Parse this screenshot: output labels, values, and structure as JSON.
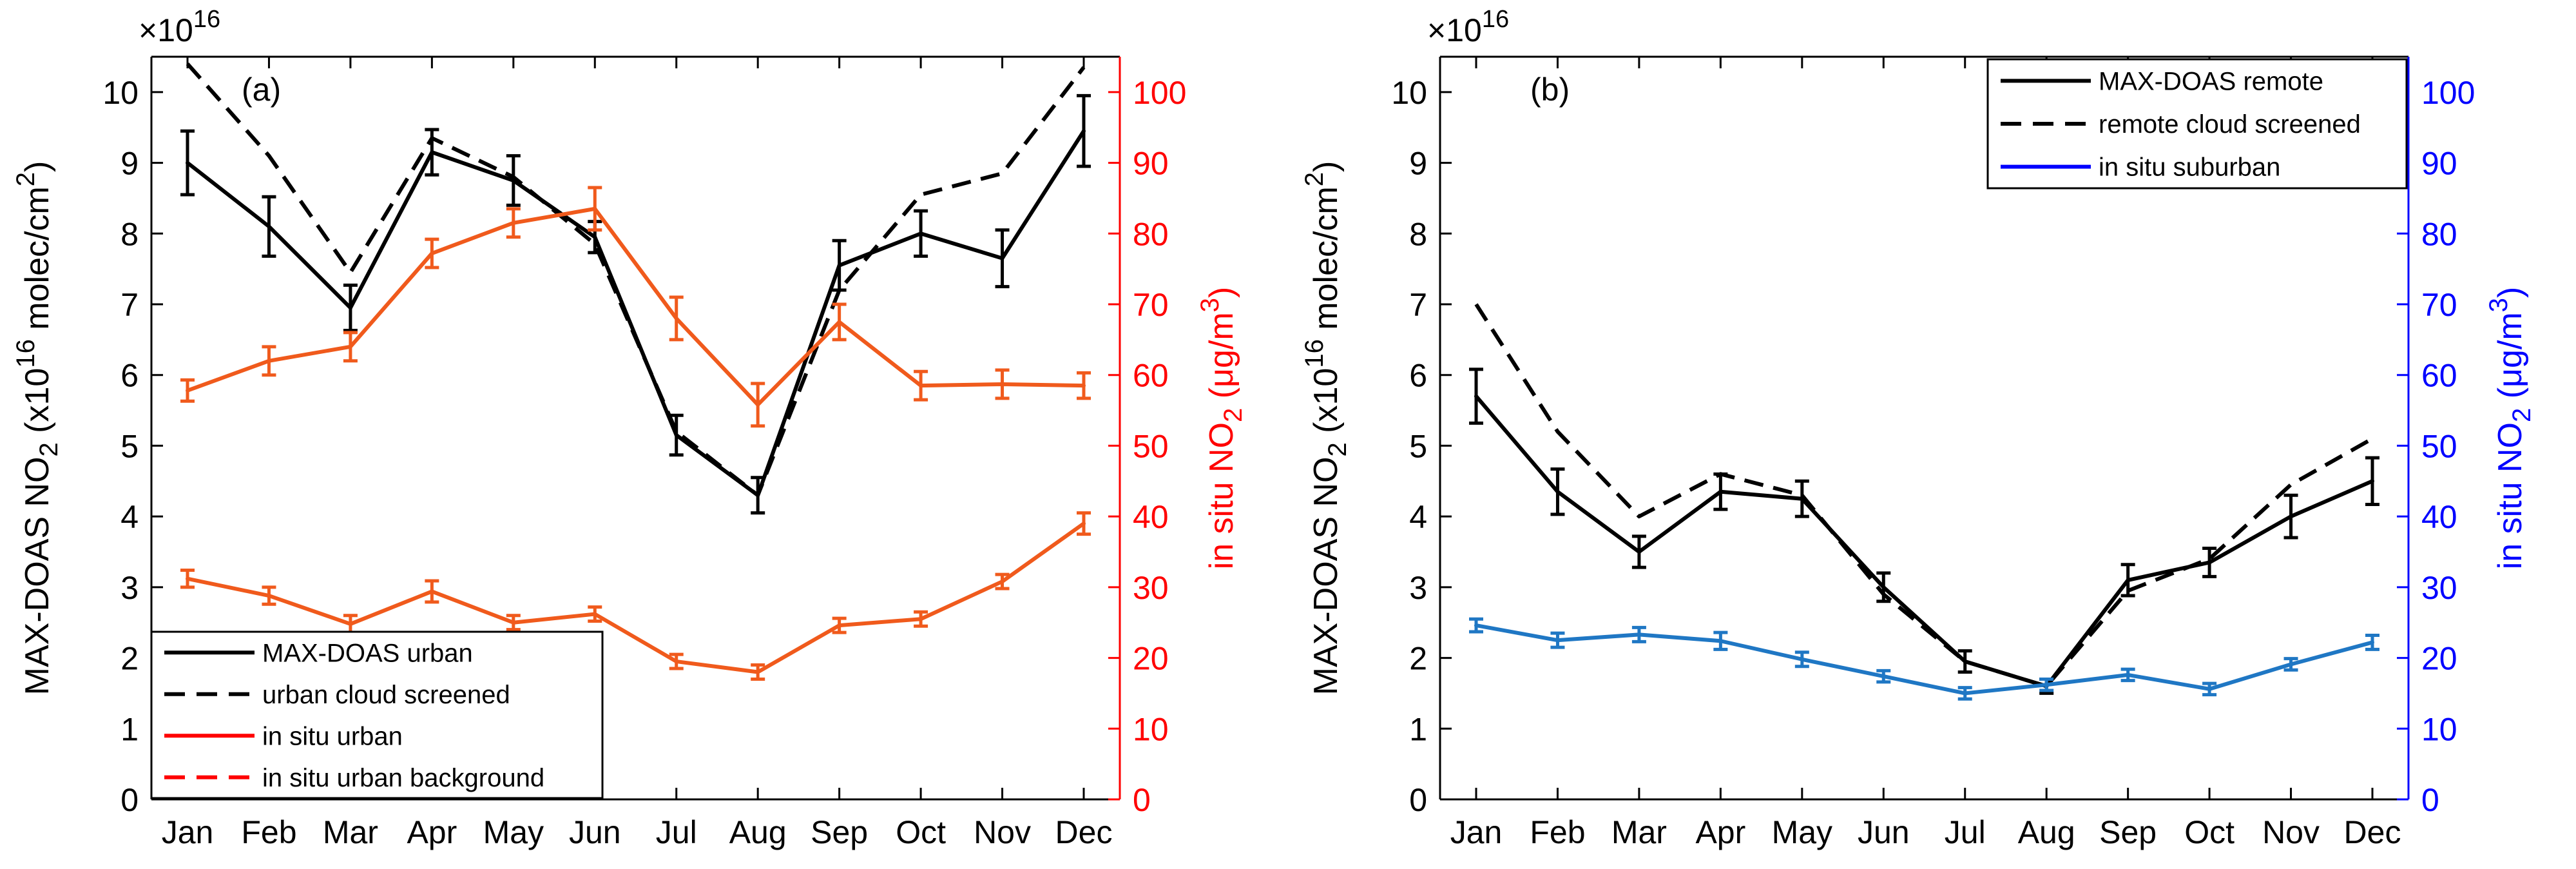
{
  "chart_data": [
    {
      "panel_label": "(a)",
      "type": "line",
      "x": [
        "Jan",
        "Feb",
        "Mar",
        "Apr",
        "May",
        "Jun",
        "Jul",
        "Aug",
        "Sep",
        "Oct",
        "Nov",
        "Dec"
      ],
      "multiplier_label": "×10",
      "multiplier_exp": "16",
      "left_axis": {
        "label_prefix": "MAX-DOAS NO",
        "label_sub": "2",
        "label_mid": " (x10",
        "label_sup1": "16",
        "label_mid2": " molec/cm",
        "label_sup2": "2",
        "label_end": ")",
        "ylim": [
          0,
          10.5
        ],
        "ticks": [
          0,
          1,
          2,
          3,
          4,
          5,
          6,
          7,
          8,
          9,
          10
        ],
        "color": "#000000"
      },
      "right_axis": {
        "label_prefix": "in situ NO",
        "label_sub": "2",
        "label_mid": " (μg/m",
        "label_sup": "3",
        "label_end": ")",
        "ylim": [
          0,
          105
        ],
        "ticks": [
          0,
          10,
          20,
          30,
          40,
          50,
          60,
          70,
          80,
          90,
          100
        ],
        "color": "#ff0000"
      },
      "series": [
        {
          "name": "MAX-DOAS urban",
          "axis": "left",
          "color": "#000000",
          "dash": false,
          "values": [
            9.0,
            8.1,
            6.95,
            9.15,
            8.75,
            7.95,
            5.15,
            4.3,
            7.55,
            8.0,
            7.65,
            9.45
          ],
          "errors": [
            0.45,
            0.42,
            0.32,
            0.32,
            0.35,
            0.22,
            0.28,
            0.25,
            0.35,
            0.32,
            0.4,
            0.5
          ]
        },
        {
          "name": "urban cloud screened",
          "axis": "left",
          "color": "#000000",
          "dash": true,
          "values": [
            10.4,
            9.1,
            7.45,
            9.35,
            8.8,
            7.85,
            5.2,
            4.3,
            7.2,
            8.55,
            8.85,
            10.35
          ]
        },
        {
          "name": "in situ urban",
          "axis": "right",
          "color": "#f05a1c",
          "dash": false,
          "values": [
            57.8,
            62.0,
            64.0,
            77.2,
            81.5,
            83.5,
            68.0,
            55.8,
            67.5,
            58.5,
            58.7,
            58.5
          ],
          "errors": [
            1.5,
            2.0,
            2.0,
            2.0,
            2.0,
            3.0,
            3.0,
            3.0,
            2.5,
            2.0,
            2.0,
            1.8
          ]
        },
        {
          "name": "in situ urban background",
          "axis": "right",
          "color": "#f05a1c",
          "dash": false,
          "values": [
            31.2,
            28.8,
            24.8,
            29.4,
            25.0,
            26.2,
            19.5,
            18.0,
            24.6,
            25.5,
            30.8,
            39.0
          ],
          "errors": [
            1.2,
            1.2,
            1.2,
            1.5,
            1.0,
            1.0,
            1.0,
            1.0,
            1.0,
            1.0,
            1.0,
            1.5
          ]
        }
      ],
      "legend": {
        "placement": "bottom-left",
        "items": [
          {
            "label": "MAX-DOAS urban",
            "color": "#000000",
            "dash": false
          },
          {
            "label": "urban cloud screened",
            "color": "#000000",
            "dash": true
          },
          {
            "label": "in situ urban",
            "color": "#ff0000",
            "dash": false
          },
          {
            "label": "in situ urban background",
            "color": "#ff0000",
            "dash": true
          }
        ]
      }
    },
    {
      "panel_label": "(b)",
      "type": "line",
      "x": [
        "Jan",
        "Feb",
        "Mar",
        "Apr",
        "May",
        "Jun",
        "Jul",
        "Aug",
        "Sep",
        "Oct",
        "Nov",
        "Dec"
      ],
      "multiplier_label": "×10",
      "multiplier_exp": "16",
      "left_axis": {
        "label_prefix": "MAX-DOAS NO",
        "label_sub": "2",
        "label_mid": " (x10",
        "label_sup1": "16",
        "label_mid2": " molec/cm",
        "label_sup2": "2",
        "label_end": ")",
        "ylim": [
          0,
          10.5
        ],
        "ticks": [
          0,
          1,
          2,
          3,
          4,
          5,
          6,
          7,
          8,
          9,
          10
        ],
        "color": "#000000"
      },
      "right_axis": {
        "label_prefix": "in situ NO",
        "label_sub": "2",
        "label_mid": " (μg/m",
        "label_sup": "3",
        "label_end": ")",
        "ylim": [
          0,
          105
        ],
        "ticks": [
          0,
          10,
          20,
          30,
          40,
          50,
          60,
          70,
          80,
          90,
          100
        ],
        "color": "#0000ff"
      },
      "series": [
        {
          "name": "MAX-DOAS remote",
          "axis": "left",
          "color": "#000000",
          "dash": false,
          "values": [
            5.7,
            4.35,
            3.5,
            4.35,
            4.25,
            3.0,
            1.95,
            1.6,
            3.1,
            3.35,
            4.0,
            4.5
          ],
          "errors": [
            0.38,
            0.32,
            0.22,
            0.25,
            0.25,
            0.2,
            0.15,
            0.1,
            0.22,
            0.2,
            0.3,
            0.33
          ]
        },
        {
          "name": "remote cloud screened",
          "axis": "left",
          "color": "#000000",
          "dash": true,
          "values": [
            7.0,
            5.2,
            4.0,
            4.6,
            4.3,
            2.9,
            1.95,
            1.6,
            2.95,
            3.4,
            4.45,
            5.1
          ]
        },
        {
          "name": "in situ suburban",
          "axis": "right",
          "color": "#1f77c4",
          "dash": false,
          "values": [
            24.6,
            22.5,
            23.3,
            22.4,
            19.8,
            17.4,
            15.0,
            16.2,
            17.6,
            15.6,
            19.1,
            22.2
          ],
          "errors": [
            0.9,
            1.0,
            1.0,
            1.2,
            1.0,
            0.8,
            0.8,
            0.8,
            0.8,
            0.8,
            0.8,
            1.0
          ]
        }
      ],
      "legend": {
        "placement": "top-right",
        "items": [
          {
            "label": "MAX-DOAS remote",
            "color": "#000000",
            "dash": false
          },
          {
            "label": "remote cloud screened",
            "color": "#000000",
            "dash": true
          },
          {
            "label": "in situ suburban",
            "color": "#0000ff",
            "dash": false
          }
        ]
      }
    }
  ]
}
